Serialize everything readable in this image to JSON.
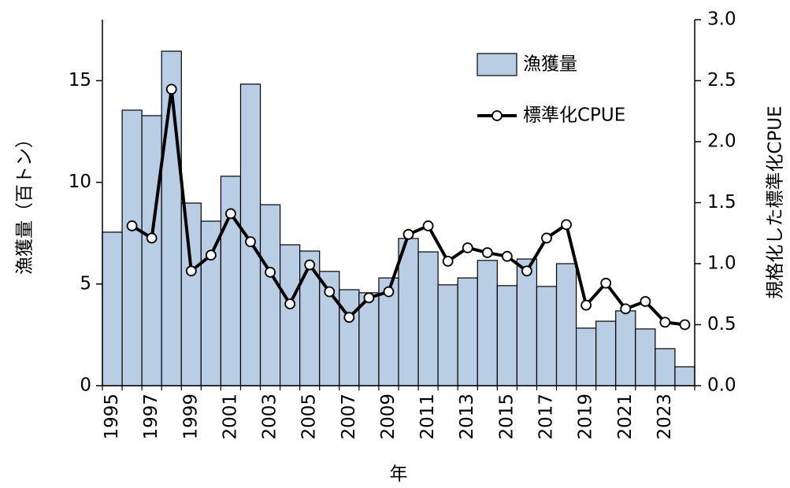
{
  "chart_data": {
    "type": "bar",
    "x_label": "年",
    "y_label": "漁獲量（百トン）",
    "y2_label": "規格化した標準化CPUE",
    "categories": [
      "1995",
      null,
      "1997",
      null,
      "1999",
      null,
      "2001",
      null,
      "2003",
      null,
      "2005",
      null,
      "2007",
      null,
      "2009",
      null,
      "2011",
      null,
      "2013",
      null,
      "2015",
      null,
      "2017",
      null,
      "2019",
      null,
      "2021",
      null,
      "2023",
      null
    ],
    "series": [
      {
        "name": "漁獲量",
        "type": "bar",
        "color": "#b9cde5",
        "values": [
          7.55,
          13.55,
          13.28,
          16.45,
          8.98,
          8.09,
          10.3,
          14.83,
          8.9,
          6.93,
          6.62,
          5.62,
          4.72,
          4.57,
          5.3,
          7.24,
          6.58,
          4.96,
          5.3,
          6.16,
          4.92,
          6.23,
          4.88,
          6.0,
          2.83,
          3.17,
          3.68,
          2.79,
          1.82,
          0.93
        ]
      },
      {
        "name": "標準化CPUE",
        "type": "line",
        "axis": "y2",
        "color": "#000000",
        "values": [
          null,
          1.31,
          1.21,
          2.43,
          0.94,
          1.07,
          1.41,
          1.18,
          0.93,
          0.67,
          0.99,
          0.77,
          0.56,
          0.72,
          0.77,
          1.24,
          1.31,
          1.02,
          1.13,
          1.09,
          1.06,
          0.94,
          1.21,
          1.32,
          0.66,
          0.84,
          0.63,
          0.69,
          0.52,
          0.5
        ]
      }
    ],
    "ylim": [
      0,
      18
    ],
    "yticks": [
      0,
      5,
      10,
      15
    ],
    "y2lim": [
      0,
      3
    ],
    "y2ticks": [
      {
        "value": 0,
        "label": "0.0"
      },
      0.5,
      {
        "value": 1,
        "label": "1.0"
      },
      1.5,
      {
        "value": 2,
        "label": "2.0"
      },
      2.5,
      {
        "value": 3,
        "label": "3.0"
      }
    ],
    "legend": "upper right"
  }
}
